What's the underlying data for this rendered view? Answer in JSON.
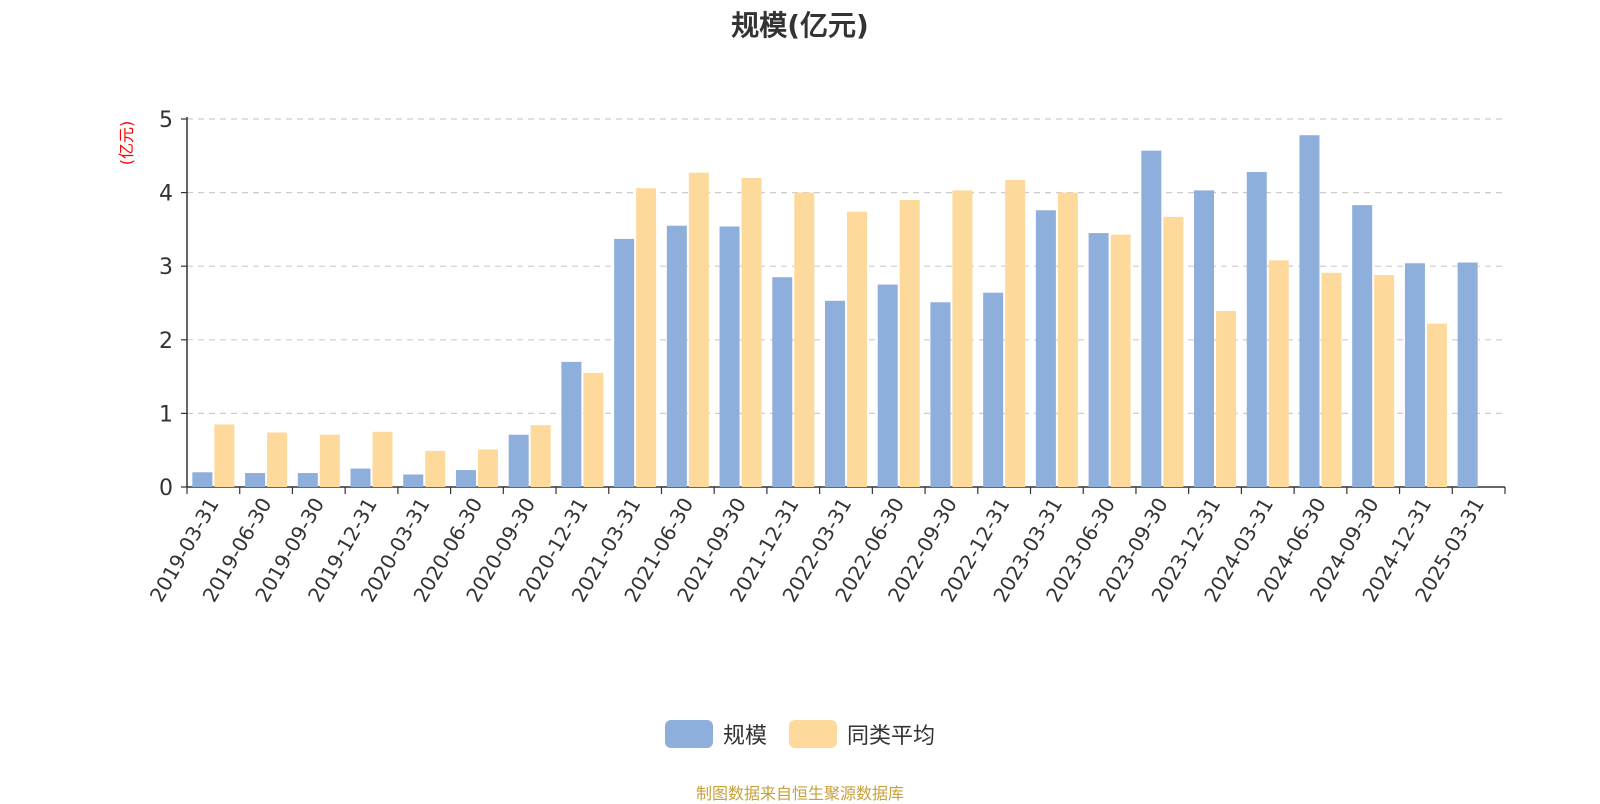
{
  "chart_data": {
    "type": "bar",
    "title": "规模(亿元)",
    "ylabel": "(亿元)",
    "ylim": [
      0,
      5
    ],
    "yticks": [
      0,
      1,
      2,
      3,
      4,
      5
    ],
    "grid": true,
    "legend_position": "bottom",
    "categories": [
      "2019-03-31",
      "2019-06-30",
      "2019-09-30",
      "2019-12-31",
      "2020-03-31",
      "2020-06-30",
      "2020-09-30",
      "2020-12-31",
      "2021-03-31",
      "2021-06-30",
      "2021-09-30",
      "2021-12-31",
      "2022-03-31",
      "2022-06-30",
      "2022-09-30",
      "2022-12-31",
      "2023-03-31",
      "2023-06-30",
      "2023-09-30",
      "2023-12-31",
      "2024-03-31",
      "2024-06-30",
      "2024-09-30",
      "2024-12-31",
      "2025-03-31"
    ],
    "series": [
      {
        "name": "规模",
        "color": "#8eaedb",
        "values": [
          0.2,
          0.19,
          0.19,
          0.25,
          0.17,
          0.23,
          0.71,
          1.7,
          3.37,
          3.55,
          3.54,
          2.85,
          2.53,
          2.75,
          2.51,
          2.64,
          3.76,
          3.45,
          4.57,
          4.03,
          4.28,
          4.78,
          3.83,
          3.04,
          3.05
        ]
      },
      {
        "name": "同类平均",
        "color": "#fdd99b",
        "values": [
          0.85,
          0.74,
          0.71,
          0.75,
          0.49,
          0.51,
          0.84,
          1.55,
          4.06,
          4.27,
          4.2,
          4.0,
          3.74,
          3.9,
          4.03,
          4.17,
          4.0,
          3.43,
          3.67,
          2.39,
          3.08,
          2.91,
          2.88,
          2.22,
          null
        ]
      }
    ]
  },
  "footer": {
    "source": "制图数据来自恒生聚源数据库"
  }
}
